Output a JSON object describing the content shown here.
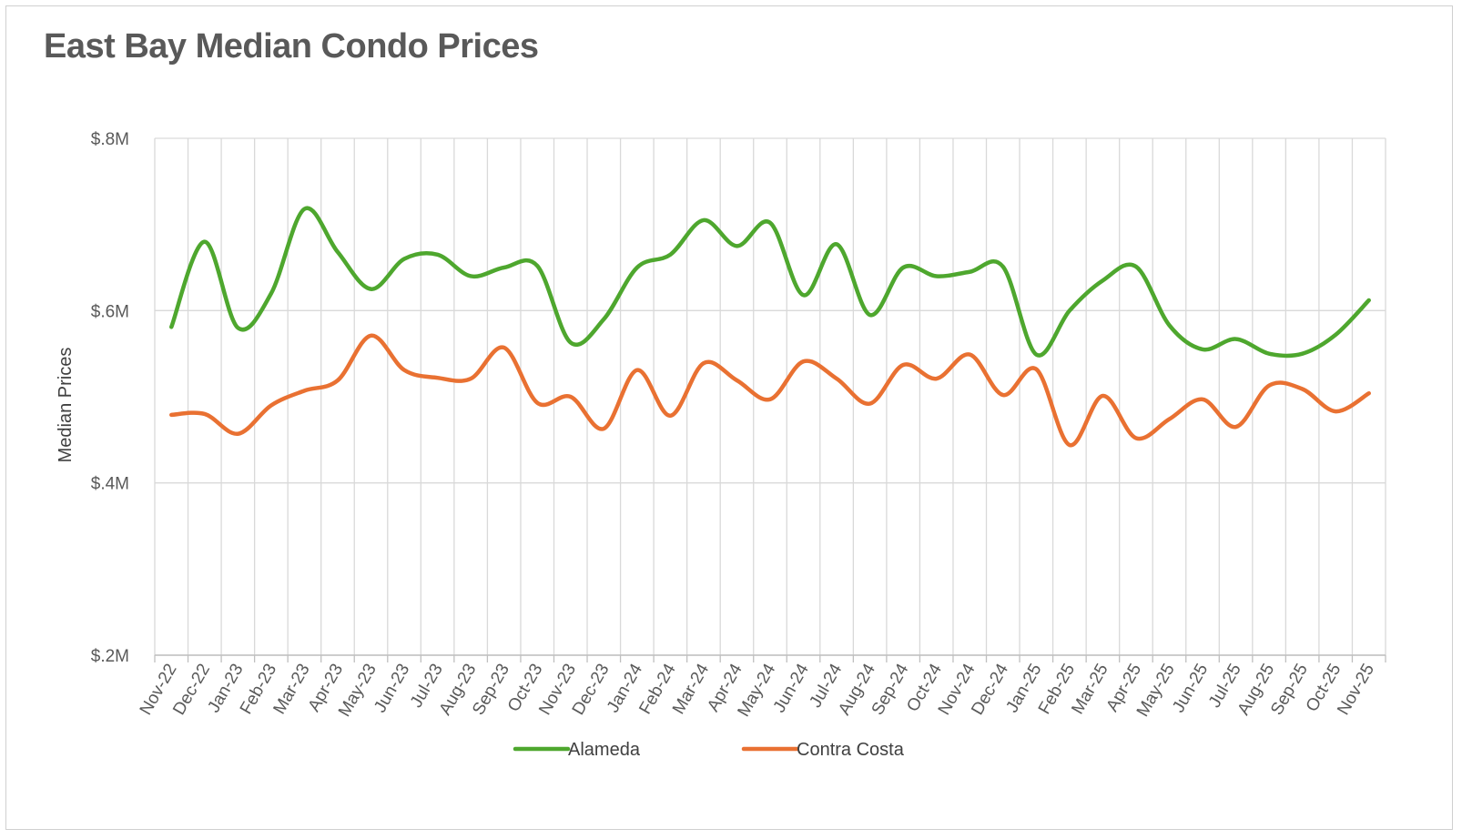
{
  "chart_data": {
    "type": "line",
    "title": "East Bay Median Condo Prices",
    "ylabel": "Median Prices",
    "xlabel": "",
    "ylim": [
      0.2,
      0.8
    ],
    "y_ticks": [
      {
        "value": 0.2,
        "label": "$.2M"
      },
      {
        "value": 0.4,
        "label": "$.4M"
      },
      {
        "value": 0.6,
        "label": "$.6M"
      },
      {
        "value": 0.8,
        "label": "$.8M"
      }
    ],
    "grid": true,
    "legend_position": "bottom",
    "smooth": true,
    "categories": [
      "Nov-22",
      "Dec-22",
      "Jan-23",
      "Feb-23",
      "Mar-23",
      "Apr-23",
      "May-23",
      "Jun-23",
      "Jul-23",
      "Aug-23",
      "Sep-23",
      "Oct-23",
      "Nov-23",
      "Dec-23",
      "Jan-24",
      "Feb-24",
      "Mar-24",
      "Apr-24",
      "May-24",
      "Jun-24",
      "Jul-24",
      "Aug-24",
      "Sep-24",
      "Oct-24",
      "Nov-24",
      "Dec-24",
      "Jan-25",
      "Feb-25",
      "Mar-25",
      "Apr-25",
      "May-25",
      "Jun-25",
      "Jul-25",
      "Aug-25",
      "Sep-25",
      "Oct-25",
      "Nov-25"
    ],
    "series": [
      {
        "name": "Alameda",
        "color": "#4ea72e",
        "values": [
          0.581,
          0.68,
          0.58,
          0.62,
          0.718,
          0.668,
          0.625,
          0.66,
          0.665,
          0.64,
          0.65,
          0.652,
          0.563,
          0.59,
          0.65,
          0.665,
          0.705,
          0.675,
          0.702,
          0.618,
          0.677,
          0.595,
          0.65,
          0.64,
          0.645,
          0.651,
          0.549,
          0.6,
          0.635,
          0.651,
          0.583,
          0.555,
          0.567,
          0.55,
          0.55,
          0.572,
          0.612
        ]
      },
      {
        "name": "Contra Costa",
        "color": "#e97132",
        "values": [
          0.479,
          0.48,
          0.457,
          0.49,
          0.507,
          0.519,
          0.571,
          0.531,
          0.522,
          0.521,
          0.557,
          0.493,
          0.5,
          0.463,
          0.531,
          0.478,
          0.539,
          0.519,
          0.497,
          0.541,
          0.521,
          0.492,
          0.537,
          0.521,
          0.549,
          0.502,
          0.532,
          0.444,
          0.501,
          0.452,
          0.474,
          0.497,
          0.465,
          0.513,
          0.509,
          0.483,
          0.504
        ]
      }
    ]
  }
}
